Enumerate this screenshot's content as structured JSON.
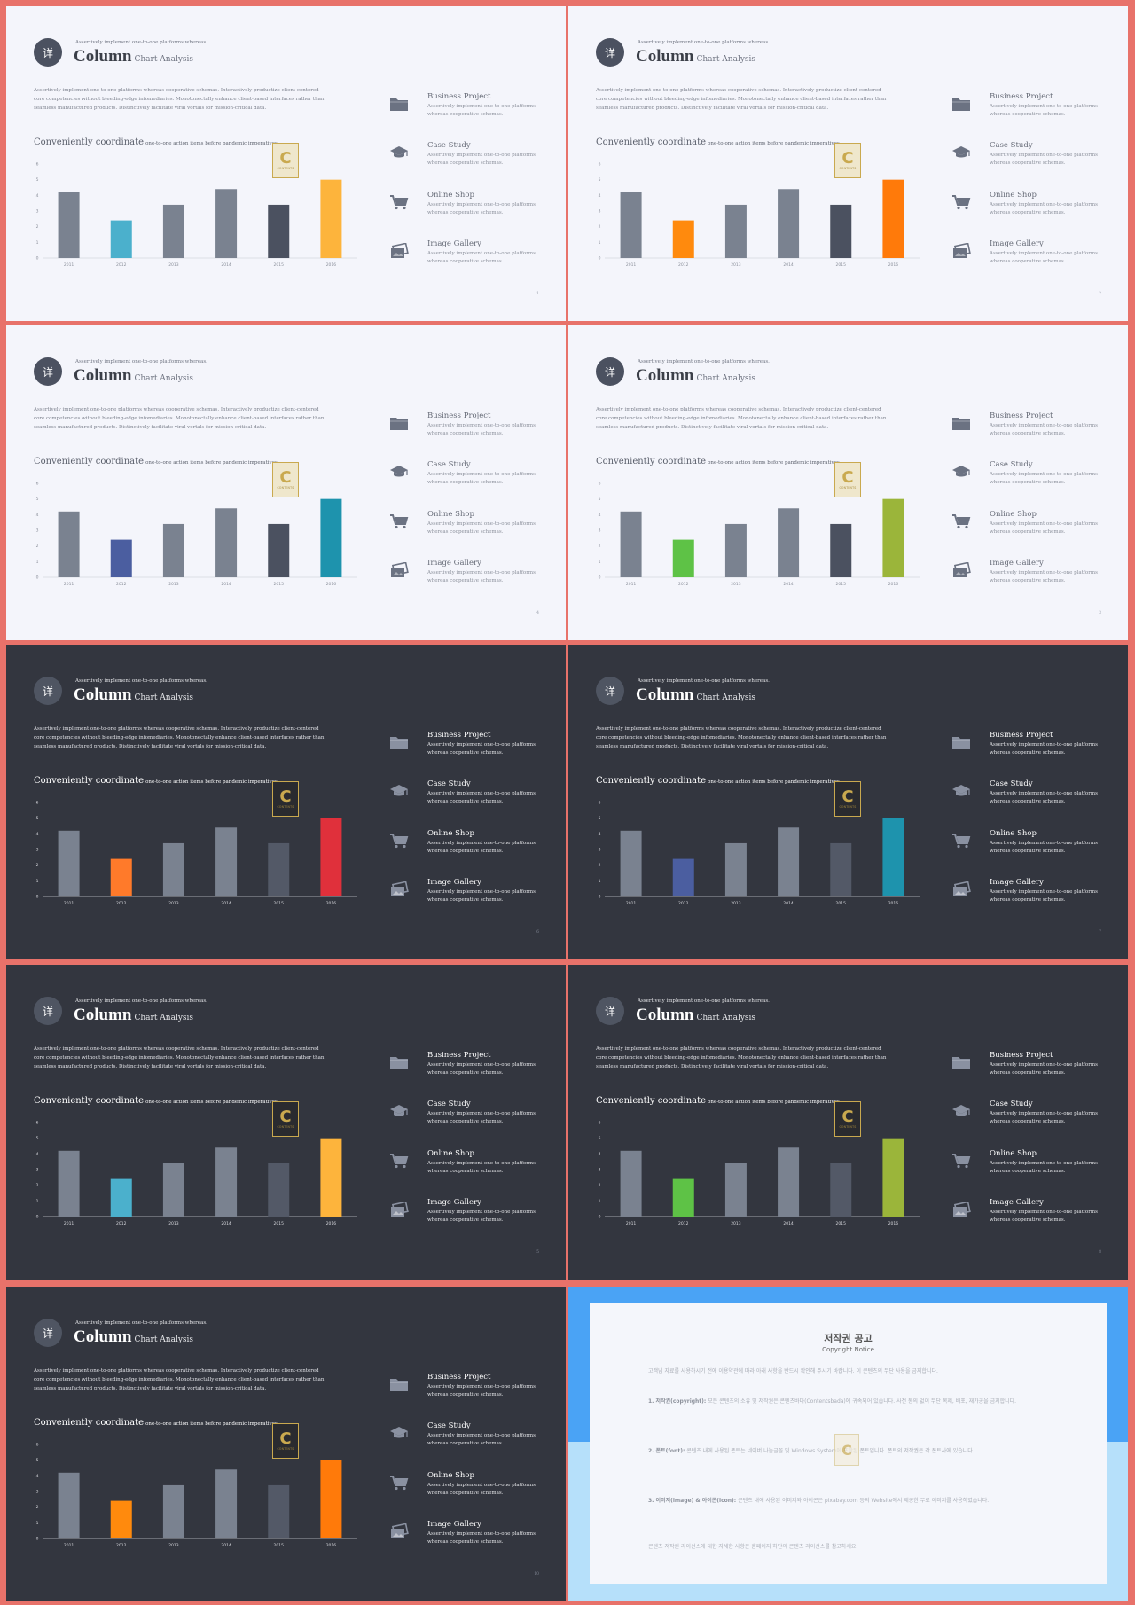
{
  "slide_text": {
    "logo_glyph": "详",
    "kicker": "Assertively implement one-to-one platforms whereas.",
    "title": "Column",
    "subtitle": "Chart Analysis",
    "body": "Assertively implement one-to-one platforms whereas cooperative schemas. Interactively productize client-centered core competencies without bleeding-edge infomediaries. Monotonectally enhance client-based interfaces rather than seamless manufactured products. Distinctively facilitate viral vortals for mission-critical data.",
    "sub_heading": "Conveniently coordinate",
    "sub_heading_small": "one-to-one action items before pandemic imperatives.",
    "badge_letter": "C",
    "badge_text": "CONTENTS"
  },
  "features": [
    {
      "name": "Business Project",
      "desc": "Assertively implement one-to-one platforms whereas cooperative schemas.",
      "icon": "folder-icon"
    },
    {
      "name": "Case Study",
      "desc": "Assertively implement one-to-one platforms whereas cooperative schemas.",
      "icon": "graduation-cap-icon"
    },
    {
      "name": "Online Shop",
      "desc": "Assertively implement one-to-one platforms whereas cooperative schemas.",
      "icon": "cart-icon"
    },
    {
      "name": "Image Gallery",
      "desc": "Assertively implement one-to-one platforms whereas cooperative schemas.",
      "icon": "image-icon"
    }
  ],
  "chart_data": {
    "type": "bar",
    "categories": [
      "2011",
      "2012",
      "2013",
      "2014",
      "2015",
      "2016"
    ],
    "values": [
      4.2,
      2.4,
      3.4,
      4.4,
      3.4,
      5.0
    ],
    "ylim": [
      0,
      6
    ],
    "yticks": [
      "0",
      "1",
      "2",
      "3",
      "4",
      "5",
      "6"
    ],
    "grid": false,
    "legend": "none"
  },
  "slides": [
    {
      "theme": "light",
      "page": "1",
      "bar_colors": [
        "#7a8290",
        "#4bb0cc",
        "#7a8290",
        "#7a8290",
        "#4b5160",
        "#fdb43c"
      ]
    },
    {
      "theme": "light",
      "page": "2",
      "bar_colors": [
        "#7a8290",
        "#ff8a0d",
        "#7a8290",
        "#7a8290",
        "#4b5160",
        "#ff7a0a"
      ]
    },
    {
      "theme": "light",
      "page": "4",
      "bar_colors": [
        "#7a8290",
        "#4b5ea0",
        "#7a8290",
        "#7a8290",
        "#4b5160",
        "#1e93ad"
      ]
    },
    {
      "theme": "light",
      "page": "3",
      "bar_colors": [
        "#7a8290",
        "#5ec246",
        "#7a8290",
        "#7a8290",
        "#4b5160",
        "#9bb53a"
      ]
    },
    {
      "theme": "dark",
      "page": "6",
      "bar_colors": [
        "#7a8290",
        "#ff7a2a",
        "#7a8290",
        "#7a8290",
        "#535967",
        "#e0303b"
      ]
    },
    {
      "theme": "dark",
      "page": "7",
      "bar_colors": [
        "#7a8290",
        "#4b5ea0",
        "#7a8290",
        "#7a8290",
        "#535967",
        "#1e93ad"
      ]
    },
    {
      "theme": "dark",
      "page": "5",
      "bar_colors": [
        "#7a8290",
        "#4bb0cc",
        "#7a8290",
        "#7a8290",
        "#535967",
        "#fdb43c"
      ]
    },
    {
      "theme": "dark",
      "page": "8",
      "bar_colors": [
        "#7a8290",
        "#5ec246",
        "#7a8290",
        "#7a8290",
        "#535967",
        "#9bb53a"
      ]
    },
    {
      "theme": "dark",
      "page": "10",
      "bar_colors": [
        "#7a8290",
        "#ff8a0d",
        "#7a8290",
        "#7a8290",
        "#535967",
        "#ff7a0a"
      ]
    }
  ],
  "copyright": {
    "title": "저작권 공고",
    "subtitle": "Copyright Notice",
    "intro": "고객님 자료를 사용하시기 전에 이용약관에 따라 아래 사항을 반드시 확인해 주시기 바랍니다. 이 콘텐츠의 무단 사용을 금지합니다.",
    "p1_head": "1. 저작권(copyright):",
    "p1": " 모든 콘텐츠의 소유 및 저작권은 콘텐츠바다(Contentsbada)에 귀속되어 있습니다. 사전 동의 없이 무단 복제, 배포, 재가공을 금지합니다.",
    "p2_head": "2. 폰트(font):",
    "p2": " 콘텐츠 내에 사용된 폰트는 네이버 나눔글꼴 및 Windows System에 포함된 폰트입니다. 폰트의 저작권은 각 폰트사에 있습니다.",
    "p3_head": "3. 이미지(image) & 아이콘(icon):",
    "p3": " 콘텐츠 내에 사용된 이미지와 아이콘은 pixabay.com 등의 Website에서 제공한 무료 이미지를 사용하였습니다.",
    "outro": "콘텐츠 저작권 라이선스에 대한 자세한 사항은 홈페이지 하단의 콘텐츠 라이선스를 참고하세요."
  }
}
